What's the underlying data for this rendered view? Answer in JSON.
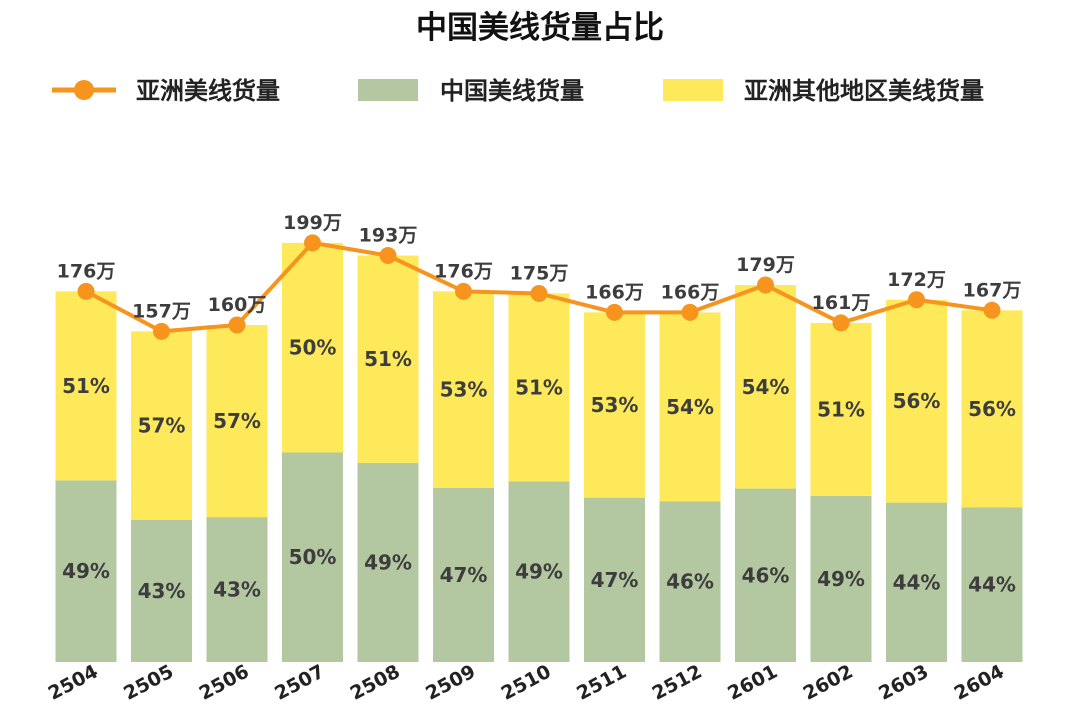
{
  "title": "中国美线货量占比",
  "colors": {
    "china": "#b3c8a1",
    "other_asia": "#fde95a",
    "asia_line": "#f7941d"
  },
  "chart_data": {
    "type": "bar",
    "stacked": true,
    "title": "中国美线货量占比",
    "legend_position": "top",
    "grid": false,
    "categories": [
      "2504",
      "2505",
      "2506",
      "2507",
      "2508",
      "2509",
      "2510",
      "2511",
      "2512",
      "2601",
      "2602",
      "2603",
      "2604"
    ],
    "series": [
      {
        "name": "亚洲美线货量",
        "type": "line",
        "values": [
          176,
          157,
          160,
          199,
          193,
          176,
          175,
          166,
          166,
          179,
          161,
          172,
          167
        ],
        "labels": [
          "176万",
          "157万",
          "160万",
          "199万",
          "193万",
          "176万",
          "175万",
          "166万",
          "166万",
          "179万",
          "161万",
          "172万",
          "167万"
        ]
      },
      {
        "name": "中国美线货量",
        "type": "bar",
        "values": [
          49,
          43,
          43,
          50,
          49,
          47,
          49,
          47,
          46,
          46,
          49,
          44,
          44
        ],
        "labels": [
          "49%",
          "43%",
          "43%",
          "50%",
          "49%",
          "47%",
          "49%",
          "47%",
          "46%",
          "46%",
          "49%",
          "44%",
          "44%"
        ]
      },
      {
        "name": "亚洲其他地区美线货量",
        "type": "bar",
        "values": [
          51,
          57,
          57,
          50,
          51,
          53,
          51,
          53,
          54,
          54,
          51,
          56,
          56
        ],
        "labels": [
          "51%",
          "57%",
          "57%",
          "50%",
          "51%",
          "53%",
          "51%",
          "53%",
          "54%",
          "54%",
          "51%",
          "56%",
          "56%"
        ]
      }
    ],
    "ylim": [
      0,
      199
    ]
  }
}
